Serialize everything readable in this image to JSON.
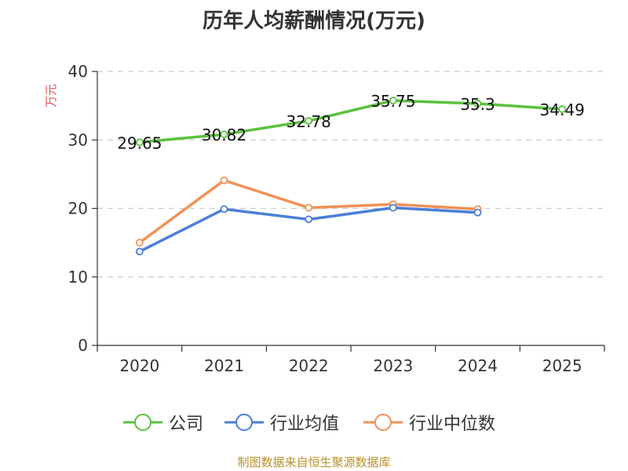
{
  "chart_data": {
    "type": "line",
    "title": "历年人均薪酬情况(万元)",
    "ylabel": "万元",
    "xlabel": "",
    "ylim": [
      0,
      40
    ],
    "yticks": [
      0,
      10,
      20,
      30,
      40
    ],
    "categories": [
      "2020",
      "2021",
      "2022",
      "2023",
      "2024",
      "2025"
    ],
    "grid": true,
    "legend_position": "bottom",
    "series": [
      {
        "name": "公司",
        "color": "#5ac13e",
        "show_labels": true,
        "values": [
          29.65,
          30.82,
          32.78,
          35.75,
          35.3,
          34.49
        ],
        "labels": [
          "29.65",
          "30.82",
          "32.78",
          "35.75",
          "35.3",
          "34.49"
        ]
      },
      {
        "name": "行业均值",
        "color": "#4b7fd8",
        "show_labels": false,
        "values": [
          13.7,
          19.9,
          18.4,
          20.1,
          19.4,
          null
        ]
      },
      {
        "name": "行业中位数",
        "color": "#f09158",
        "show_labels": false,
        "values": [
          15.0,
          24.1,
          20.1,
          20.6,
          19.9,
          null
        ]
      }
    ]
  },
  "source_note": "制图数据来自恒生聚源数据库"
}
